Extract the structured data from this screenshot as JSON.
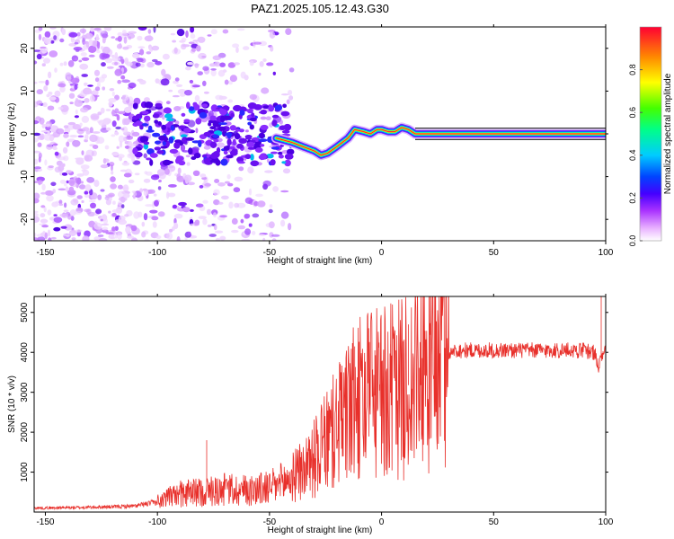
{
  "title": "PAZ1.2025.105.12.43.G30",
  "colors": {
    "snr_line": "#e8302b",
    "axis": "#000000",
    "colormap": [
      "#ffffff",
      "#cc66ff",
      "#8800ff",
      "#2222ff",
      "#00ccff",
      "#00ff66",
      "#ffff00",
      "#ff8800",
      "#ff0022"
    ]
  },
  "chart_data": [
    {
      "type": "heatmap",
      "xlabel": "Height of straight line (km)",
      "ylabel": "Frequency (Hz)",
      "xlim": [
        -155,
        100
      ],
      "ylim": [
        -25,
        25
      ],
      "xticks": [
        -150,
        -100,
        -50,
        0,
        50,
        100
      ],
      "yticks": [
        -20,
        -10,
        0,
        10,
        20
      ],
      "colorbar": {
        "label": "Normalized spectral amplitude",
        "range": [
          0,
          1
        ],
        "ticks": [
          "0.0",
          "0.2",
          "0.4",
          "0.6",
          "0.8"
        ]
      },
      "ridge": {
        "x": [
          -47,
          -40,
          -35,
          -30,
          -27,
          -24,
          -20,
          -15,
          -12,
          -8,
          -5,
          -2,
          0,
          3,
          6,
          9,
          12,
          15,
          100
        ],
        "y": [
          -1.0,
          -2.0,
          -3.0,
          -4.0,
          -5.0,
          -4.5,
          -3.0,
          -1.0,
          1.0,
          0.5,
          0.0,
          1.0,
          1.0,
          0.5,
          0.5,
          1.5,
          1.0,
          0.0,
          0.0
        ]
      },
      "scatter_region": {
        "x_range": [
          -155,
          -40
        ],
        "y_range": [
          -25,
          25
        ]
      }
    },
    {
      "type": "line",
      "xlabel": "Height of straight line (km)",
      "ylabel": "SNR (10 * v/v)",
      "xlim": [
        -155,
        100
      ],
      "ylim": [
        0,
        5400
      ],
      "xticks": [
        -150,
        -100,
        -50,
        0,
        50,
        100
      ],
      "yticks": [
        1000,
        2000,
        3000,
        4000,
        5000
      ],
      "series": [
        {
          "x": [
            -155,
            -140,
            -120,
            -110,
            -100,
            -95,
            -90,
            -80,
            -70,
            -60,
            -50,
            -45,
            -40,
            -35,
            -30,
            -25,
            -20,
            -15,
            -10,
            -5,
            0,
            5,
            10,
            15,
            20,
            25,
            30,
            35,
            40,
            50,
            60,
            70,
            80,
            90,
            95,
            97,
            98,
            100
          ],
          "y": [
            100,
            110,
            130,
            150,
            250,
            350,
            450,
            500,
            550,
            550,
            600,
            700,
            850,
            1050,
            1350,
            1700,
            2100,
            2500,
            2800,
            2900,
            2950,
            3000,
            3100,
            3300,
            3600,
            3850,
            4000,
            4050,
            4050,
            4050,
            4050,
            4050,
            4050,
            4050,
            4000,
            3600,
            3900,
            4000
          ],
          "spikes": [
            {
              "x": 98,
              "y": 5400
            },
            {
              "x": 12,
              "y": 4700
            },
            {
              "x": -12,
              "y": 4150
            },
            {
              "x": -3,
              "y": 4050
            },
            {
              "x": 4,
              "y": 4200
            },
            {
              "x": -78,
              "y": 1800
            }
          ]
        }
      ]
    }
  ]
}
